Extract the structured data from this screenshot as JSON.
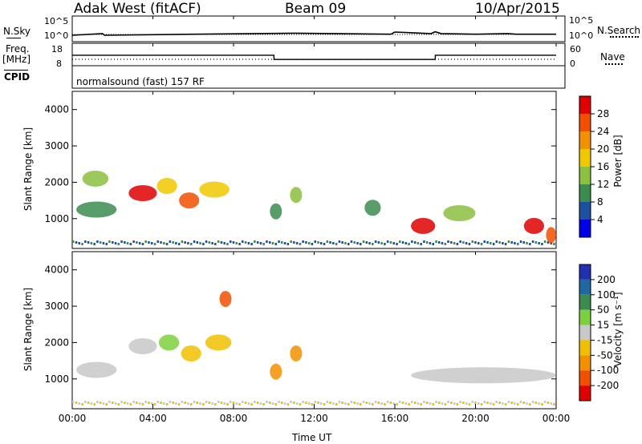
{
  "header": {
    "station": "Adak West (fitACF)",
    "beam": "Beam 09",
    "date": "10/Apr/2015"
  },
  "strips": {
    "nsky_label": "N.Sky",
    "nsky_ticks": [
      "10^5",
      "10^0"
    ],
    "nsearch_label": "N.Search",
    "freq_label": "Freq.",
    "freq_unit": "[MHz]",
    "freq_ticks": [
      "18",
      "8"
    ],
    "nave_ticks": [
      "60",
      "0"
    ],
    "nave_label": "Nave",
    "cpid_label": "CPID",
    "cpid_value": "normalsound (fast) 157 RF"
  },
  "panels": {
    "power": {
      "ylabel": "Slant Range [km]",
      "cbar_label": "Power [dB]",
      "cbar_ticks": [
        "28",
        "24",
        "20",
        "16",
        "12",
        "8",
        "4"
      ],
      "cbar_colors": [
        "#e00000",
        "#f05000",
        "#f39000",
        "#f0c800",
        "#8cc040",
        "#3c8c50",
        "#1e50a0",
        "#0000e6"
      ]
    },
    "velocity": {
      "ylabel": "Slant Range [km]",
      "cbar_label": "Velocity [m s⁻¹]",
      "cbar_ticks": [
        "200",
        "100",
        "50",
        "15",
        "-15",
        "-50",
        "-100",
        "-200"
      ],
      "cbar_colors": [
        "#2030b0",
        "#1e6aa0",
        "#3c8c50",
        "#7cd040",
        "#c8c8c8",
        "#f0c000",
        "#f39000",
        "#f05000",
        "#e00000"
      ]
    }
  },
  "xaxis": {
    "label": "Time UT",
    "ticks": [
      "00:00",
      "04:00",
      "08:00",
      "12:00",
      "16:00",
      "20:00",
      "00:00"
    ]
  },
  "chart_data": [
    {
      "type": "line",
      "title": "N.Sky",
      "x": [
        0,
        1.5,
        1.6,
        6,
        11,
        15.8,
        16,
        17.8,
        18,
        18.3,
        20,
        21.6,
        22,
        24
      ],
      "values": [
        1,
        3,
        1,
        2,
        4,
        2,
        8,
        3,
        10,
        3,
        2,
        3,
        2,
        2
      ],
      "note_scale": "log 10^0 to 10^5"
    },
    {
      "type": "line",
      "title": "Freq. [MHz]",
      "x": [
        0,
        10,
        10.01,
        18,
        18.01,
        24
      ],
      "values": [
        12.6,
        12.6,
        10.2,
        10.2,
        12.6,
        12.6
      ],
      "ylim": [
        8,
        18
      ]
    },
    {
      "type": "heatmap",
      "title": "Power [dB]",
      "xlabel": "Time UT",
      "ylabel": "Slant Range [km]",
      "xlim": [
        0,
        24
      ],
      "ylim": [
        180,
        4500
      ],
      "yticks": [
        1000,
        2000,
        3000,
        4000
      ],
      "features": [
        {
          "x0": 0.2,
          "x1": 2.2,
          "range_km": 1250,
          "power_dB": 6
        },
        {
          "x0": 0.5,
          "x1": 1.8,
          "range_km": 2100,
          "power_dB": 10
        },
        {
          "x0": 2.8,
          "x1": 4.2,
          "range_km": 1700,
          "power_dB": 26
        },
        {
          "x0": 4.2,
          "x1": 5.2,
          "range_km": 1900,
          "power_dB": 16
        },
        {
          "x0": 5.3,
          "x1": 6.3,
          "range_km": 1500,
          "power_dB": 22
        },
        {
          "x0": 6.3,
          "x1": 7.8,
          "range_km": 1800,
          "power_dB": 14
        },
        {
          "x0": 10.8,
          "x1": 11.4,
          "range_km": 1650,
          "power_dB": 10
        },
        {
          "x0": 9.8,
          "x1": 10.4,
          "range_km": 1200,
          "power_dB": 8
        },
        {
          "x0": 14.5,
          "x1": 15.3,
          "range_km": 1300,
          "power_dB": 8
        },
        {
          "x0": 16.8,
          "x1": 18.0,
          "range_km": 800,
          "power_dB": 26
        },
        {
          "x0": 18.4,
          "x1": 20.0,
          "range_km": 1150,
          "power_dB": 12
        },
        {
          "x0": 22.4,
          "x1": 23.4,
          "range_km": 800,
          "power_dB": 26
        },
        {
          "x0": 23.5,
          "x1": 24.0,
          "range_km": 550,
          "power_dB": 24
        }
      ]
    },
    {
      "type": "heatmap",
      "title": "Velocity [m s⁻¹]",
      "xlabel": "Time UT",
      "ylabel": "Slant Range [km]",
      "xlim": [
        0,
        24
      ],
      "ylim": [
        180,
        4500
      ],
      "yticks": [
        1000,
        2000,
        3000,
        4000
      ],
      "features": [
        {
          "x0": 0.2,
          "x1": 2.2,
          "range_km": 1250,
          "velocity": 0
        },
        {
          "x0": 2.8,
          "x1": 4.2,
          "range_km": 1900,
          "velocity": 0
        },
        {
          "x0": 4.3,
          "x1": 5.3,
          "range_km": 2000,
          "velocity": 25
        },
        {
          "x0": 5.4,
          "x1": 6.4,
          "range_km": 1700,
          "velocity": -25
        },
        {
          "x0": 6.6,
          "x1": 7.9,
          "range_km": 2000,
          "velocity": -25
        },
        {
          "x0": 7.3,
          "x1": 7.9,
          "range_km": 3200,
          "velocity": -200
        },
        {
          "x0": 10.8,
          "x1": 11.4,
          "range_km": 1700,
          "velocity": -100
        },
        {
          "x0": 9.8,
          "x1": 10.4,
          "range_km": 1200,
          "velocity": -100
        },
        {
          "x0": 16.8,
          "x1": 24.0,
          "range_km": 1100,
          "velocity": 0
        }
      ]
    }
  ]
}
